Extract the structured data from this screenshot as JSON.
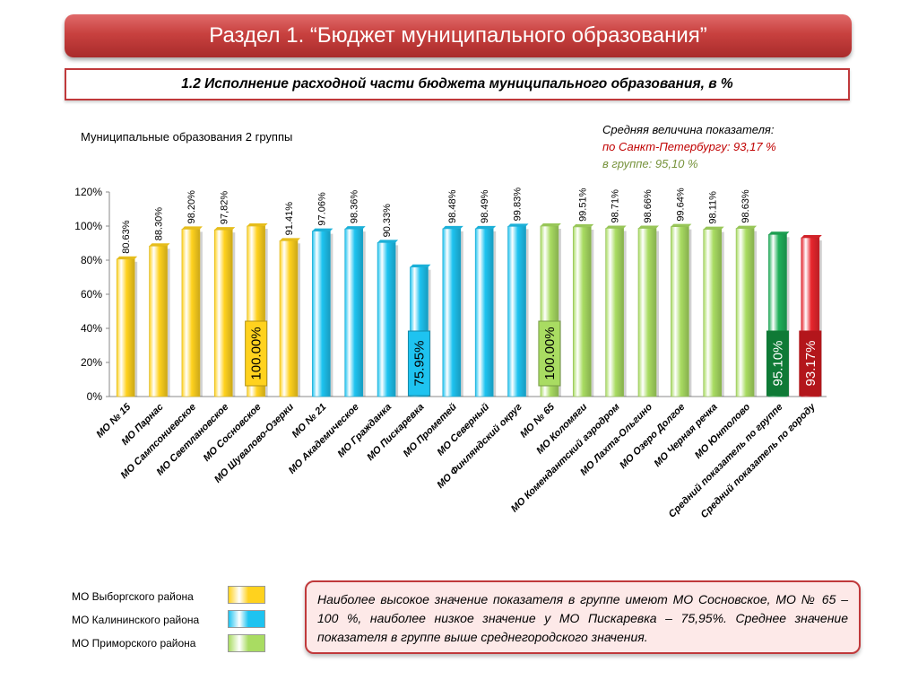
{
  "header": {
    "title": "Раздел 1. “Бюджет муниципального образования”",
    "subtitle": "1.2 Исполнение расходной части бюджета муниципального образования, в %"
  },
  "group_title": "Муниципальные образования 2 группы",
  "averages": {
    "heading": "Средняя величина показателя:",
    "city": "по Санкт-Петербургу:  93,17 %",
    "group": "в группе:  95,10 %"
  },
  "chart_data": {
    "type": "bar",
    "ylim": [
      0,
      120
    ],
    "yticks": [
      "0%",
      "20%",
      "40%",
      "60%",
      "80%",
      "100%",
      "120%"
    ],
    "categories": [
      "МО № 15",
      "МО Парнас",
      "МО Сампсониевское",
      "МО Светлановское",
      "МО Сосновское",
      "МО Шувалово-Озерки",
      "МО № 21",
      "МО Академическое",
      "МО Гражданка",
      "МО Пискаревка",
      "МО Прометей",
      "МО Северный",
      "МО Финляндский округ",
      "МО № 65",
      "МО Коломяги",
      "МО Комендантский аэродром",
      "МО Лахта-Ольгино",
      "МО Озеро Долгое",
      "МО Черная речка",
      "МО Юнтолово",
      "Средний показатель по группе",
      "Средний показатель по городу"
    ],
    "values": [
      80.63,
      88.3,
      98.2,
      97.82,
      100.0,
      91.41,
      97.06,
      98.36,
      90.33,
      75.95,
      98.48,
      98.49,
      99.83,
      100.0,
      99.51,
      98.71,
      98.66,
      99.64,
      98.11,
      98.63,
      95.1,
      93.17
    ],
    "labels": [
      "80.63%",
      "88.30%",
      "98.20%",
      "97,82%",
      "100.00%",
      "91.41%",
      "97.06%",
      "98.36%",
      "90.33%",
      "75.95%",
      "98.48%",
      "98.49%",
      "99.83%",
      "100.00%",
      "99.51%",
      "98.71%",
      "98.66%",
      "99.64%",
      "98.11%",
      "98.63%",
      "95.10%",
      "93.17%"
    ],
    "groups": [
      "vyborg",
      "vyborg",
      "vyborg",
      "vyborg",
      "vyborg",
      "vyborg",
      "kalinin",
      "kalinin",
      "kalinin",
      "kalinin",
      "kalinin",
      "kalinin",
      "kalinin",
      "primorsk",
      "primorsk",
      "primorsk",
      "primorsk",
      "primorsk",
      "primorsk",
      "primorsk",
      "group_avg",
      "city_avg"
    ],
    "highlighted": [
      4,
      9,
      13,
      20,
      21
    ],
    "colors": {
      "vyborg": "#ffd21e",
      "kalinin": "#1ec3f0",
      "primorsk": "#a9dc62",
      "group_avg": "#1fb05a",
      "city_avg": "#e8262d"
    },
    "grid": false
  },
  "legend": [
    {
      "label": "МО Выборгского района",
      "color": "#ffd21e"
    },
    {
      "label": "МО Калининского  района",
      "color": "#1ec3f0"
    },
    {
      "label": "МО Приморского района",
      "color": "#a9dc62"
    }
  ],
  "note": "Наиболее высокое значение показателя в группе имеют МО Сосновское, МО № 65 – 100 %, наиболее низкое значение у МО Пискаревка – 75,95%. Среднее значение показателя в группе выше среднегородского значения."
}
